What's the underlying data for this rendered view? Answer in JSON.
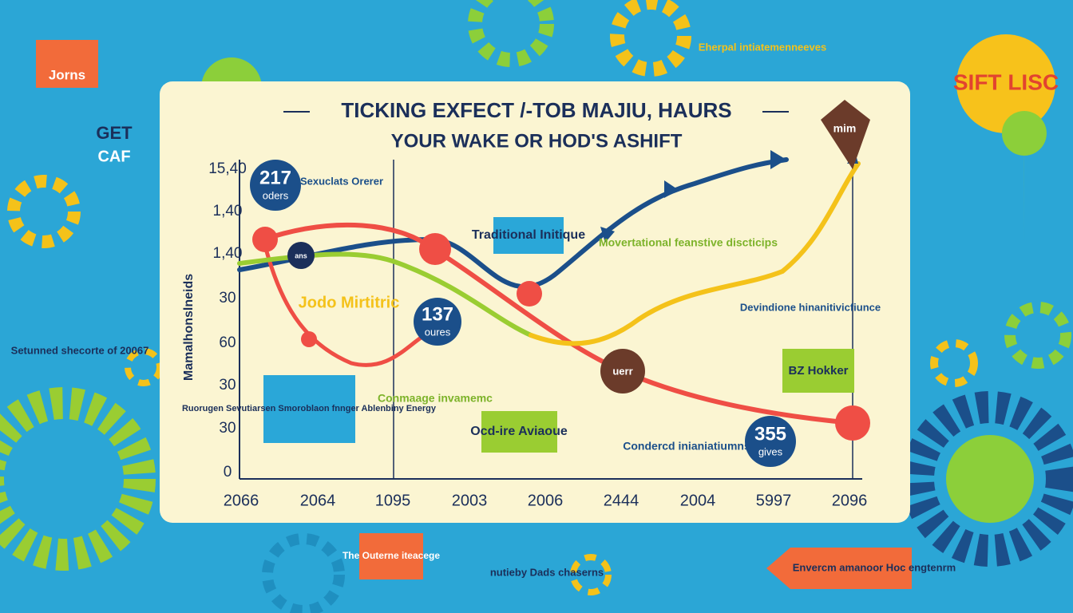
{
  "header": {
    "title_lines": [
      "TICKING EXFECT /-TOB MAJIU, HAURS",
      "YOUR WAKE OR HOD'S ASHIFT"
    ]
  },
  "axis": {
    "y_title": "Mamalhonslneids",
    "y_labels": [
      "15,40",
      "1,40",
      "1,40",
      "30",
      "60",
      "30",
      "30",
      "0"
    ],
    "x_labels": [
      "2066",
      "2064",
      "1095",
      "2003",
      "2006",
      "2444",
      "2004",
      "5997",
      "2096"
    ]
  },
  "badges": [
    {
      "number": "217",
      "sub": "oders"
    },
    {
      "number": "137",
      "sub": "oures"
    },
    {
      "number": "355",
      "sub": "gives"
    }
  ],
  "notes": [
    "Sexuclats Orerer",
    "Jodo Mirtitric",
    "Traditional Initique",
    "Movertational feanstive discticips",
    "Devindione hinanitivicfiunce",
    "Conmaage invamemc",
    "Ocd-ire Aviaoue",
    "Condercd inianiatiumns",
    "BZ Hokker",
    "Ruorugen Sevutiarsen Smoroblaon fnnger Ablenbiny Energy",
    "mim",
    "uerr",
    "ans"
  ],
  "sidebar": [
    "Jorns",
    "GET",
    "CAF",
    "Eherpal intiatemenneeves",
    "SIFT LISC",
    "Setunned shecorte of 20067",
    "The Outerne iteacege",
    "nutieby Dads chaserns",
    "Envercm amanoor Hoc engtenrm"
  ]
}
